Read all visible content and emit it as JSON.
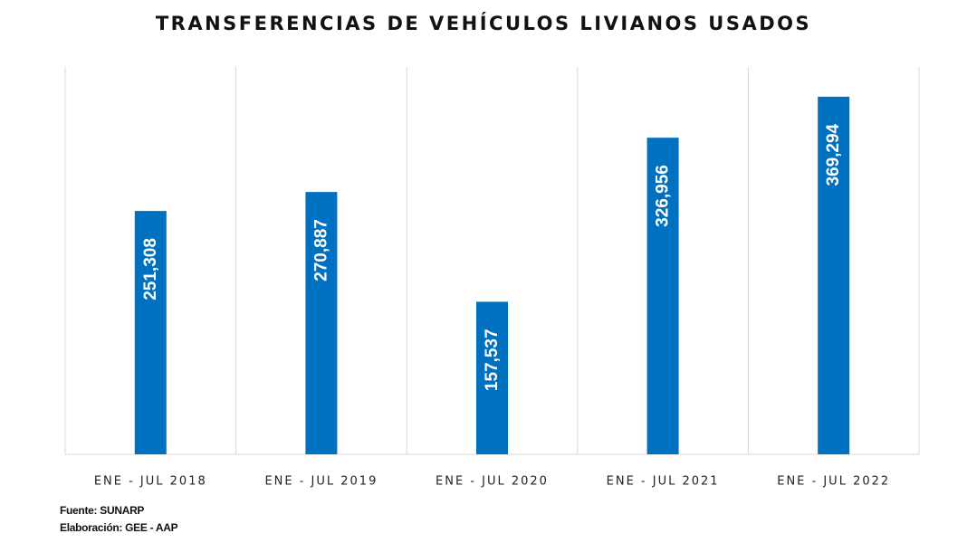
{
  "chart_data": {
    "type": "bar",
    "title": "TRANSFERENCIAS DE VEHÍCULOS LIVIANOS USADOS",
    "xlabel": "",
    "ylabel": "",
    "categories": [
      "ENE - JUL 2018",
      "ENE - JUL 2019",
      "ENE - JUL 2020",
      "ENE - JUL 2021",
      "ENE - JUL 2022"
    ],
    "values": [
      251308,
      270887,
      157537,
      326956,
      369294
    ],
    "value_labels": [
      "251,308",
      "270,887",
      "157,537",
      "326,956",
      "369,294"
    ],
    "ylim": [
      0,
      400000
    ],
    "grid": "vertical separators between categories",
    "legend": "none",
    "bar_color": "#0070C0",
    "label_color": "#ffffff",
    "grid_color": "#d9d9d9"
  },
  "footer": {
    "source": "Fuente: SUNARP",
    "credit": "Elaboración: GEE - AAP"
  }
}
